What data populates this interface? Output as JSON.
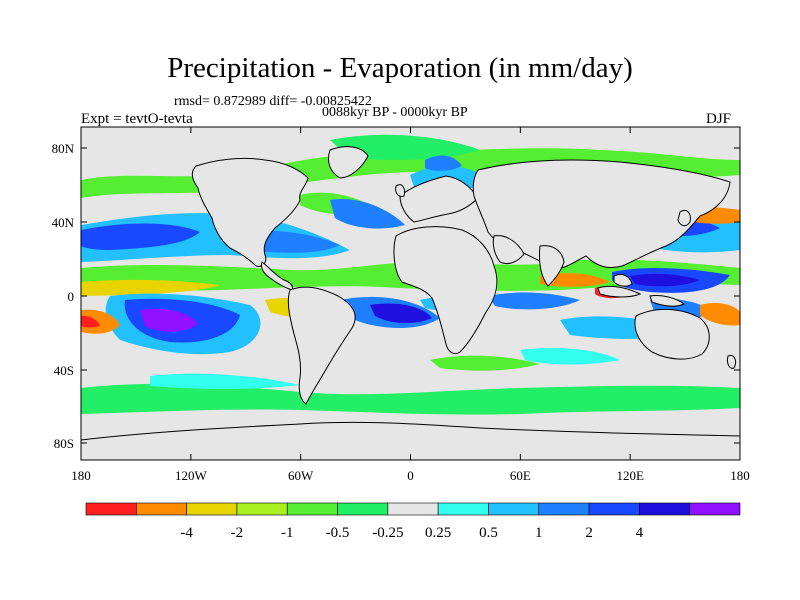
{
  "title": "Precipitation - Evaporation (in mm/day)",
  "stats": "rmsd= 0.872989 diff= -0.00825422",
  "period": "0088kyr BP - 0000kyr BP",
  "experiment": "Expt = tevtO-tevta",
  "season": "DJF",
  "map": {
    "lon_ticks": [
      "180",
      "120W",
      "60W",
      "0",
      "60E",
      "120E",
      "180"
    ],
    "lat_ticks": [
      "80N",
      "40N",
      "0",
      "40S",
      "80S"
    ],
    "background_color": "#e6e6e6"
  },
  "colorbar": {
    "colors": [
      "#ff1f1f",
      "#ff8c00",
      "#e8d400",
      "#a8f020",
      "#55ee33",
      "#22ee66",
      "#e6e6e6",
      "#33ffee",
      "#22c0ff",
      "#1e80ff",
      "#1848ff",
      "#2010e0",
      "#9010ff"
    ],
    "labels": [
      "-4",
      "-2",
      "-1",
      "-0.5",
      "-0.25",
      "0.25",
      "0.5",
      "1",
      "2",
      "4"
    ]
  }
}
